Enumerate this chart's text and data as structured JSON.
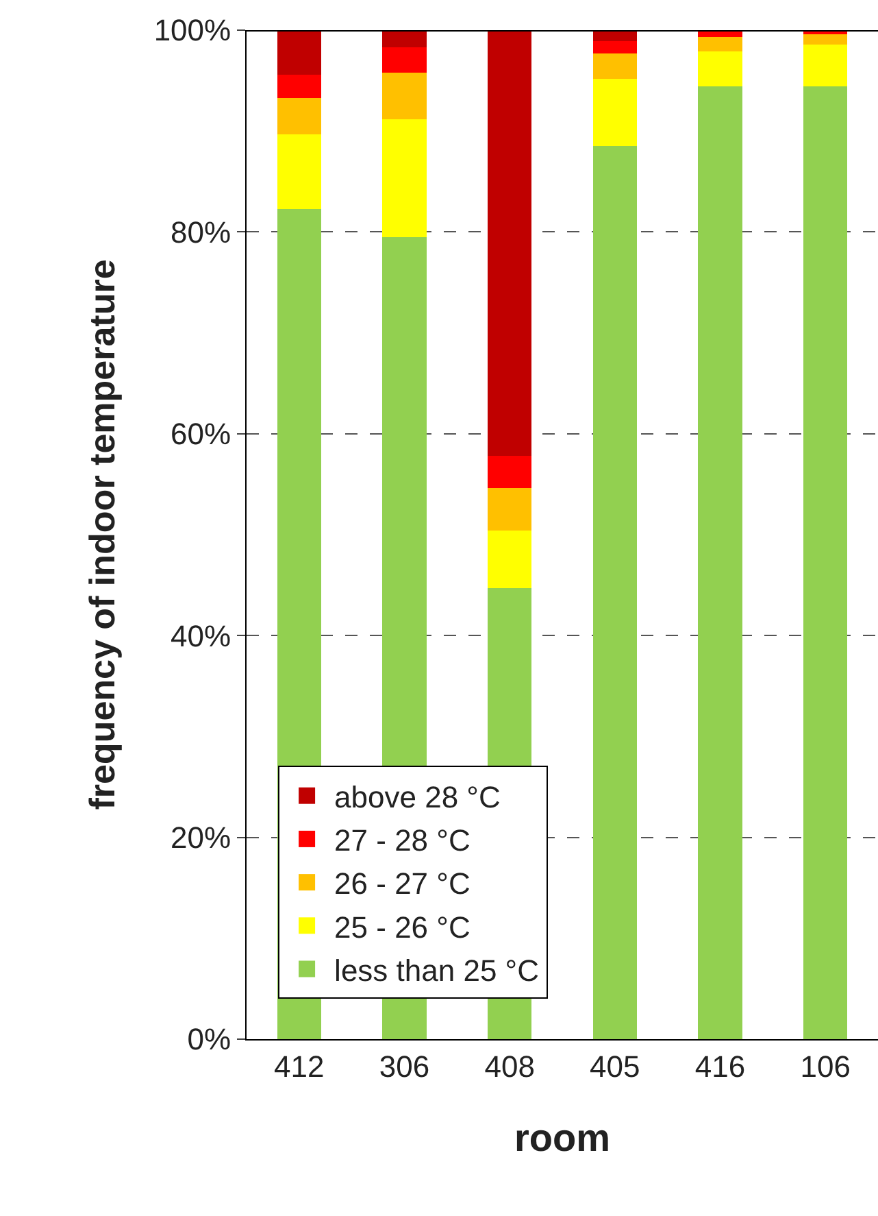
{
  "chart_data": {
    "type": "bar",
    "stacked": true,
    "xlabel": "room",
    "ylabel": "frequency of indoor temperature",
    "categories": [
      "412",
      "306",
      "408",
      "405",
      "416",
      "106"
    ],
    "series": [
      {
        "name": "less than 25 °C",
        "color": "#92d050",
        "values": [
          82.3,
          79.5,
          44.7,
          88.5,
          94.4,
          94.4
        ]
      },
      {
        "name": "25 - 26 °C",
        "color": "#ffff00",
        "values": [
          7.4,
          11.7,
          5.7,
          6.7,
          3.5,
          4.2
        ]
      },
      {
        "name": "26 - 27 °C",
        "color": "#ffc000",
        "values": [
          3.6,
          4.6,
          4.2,
          2.5,
          1.4,
          1.0
        ]
      },
      {
        "name": "27 - 28 °C",
        "color": "#ff0000",
        "values": [
          2.3,
          2.5,
          3.2,
          1.2,
          0.7,
          0.4
        ]
      },
      {
        "name": "above 28 °C",
        "color": "#c00000",
        "values": [
          4.4,
          1.7,
          42.2,
          1.1,
          null,
          null
        ]
      }
    ],
    "ylim": [
      0,
      100
    ],
    "yticks": [
      {
        "value": 0,
        "label": "0%"
      },
      {
        "value": 20,
        "label": "20%"
      },
      {
        "value": 40,
        "label": "40%"
      },
      {
        "value": 60,
        "label": "60%"
      },
      {
        "value": 80,
        "label": "80%"
      },
      {
        "value": 100,
        "label": "100%"
      }
    ],
    "grid": "y",
    "legend": "bottom left"
  }
}
